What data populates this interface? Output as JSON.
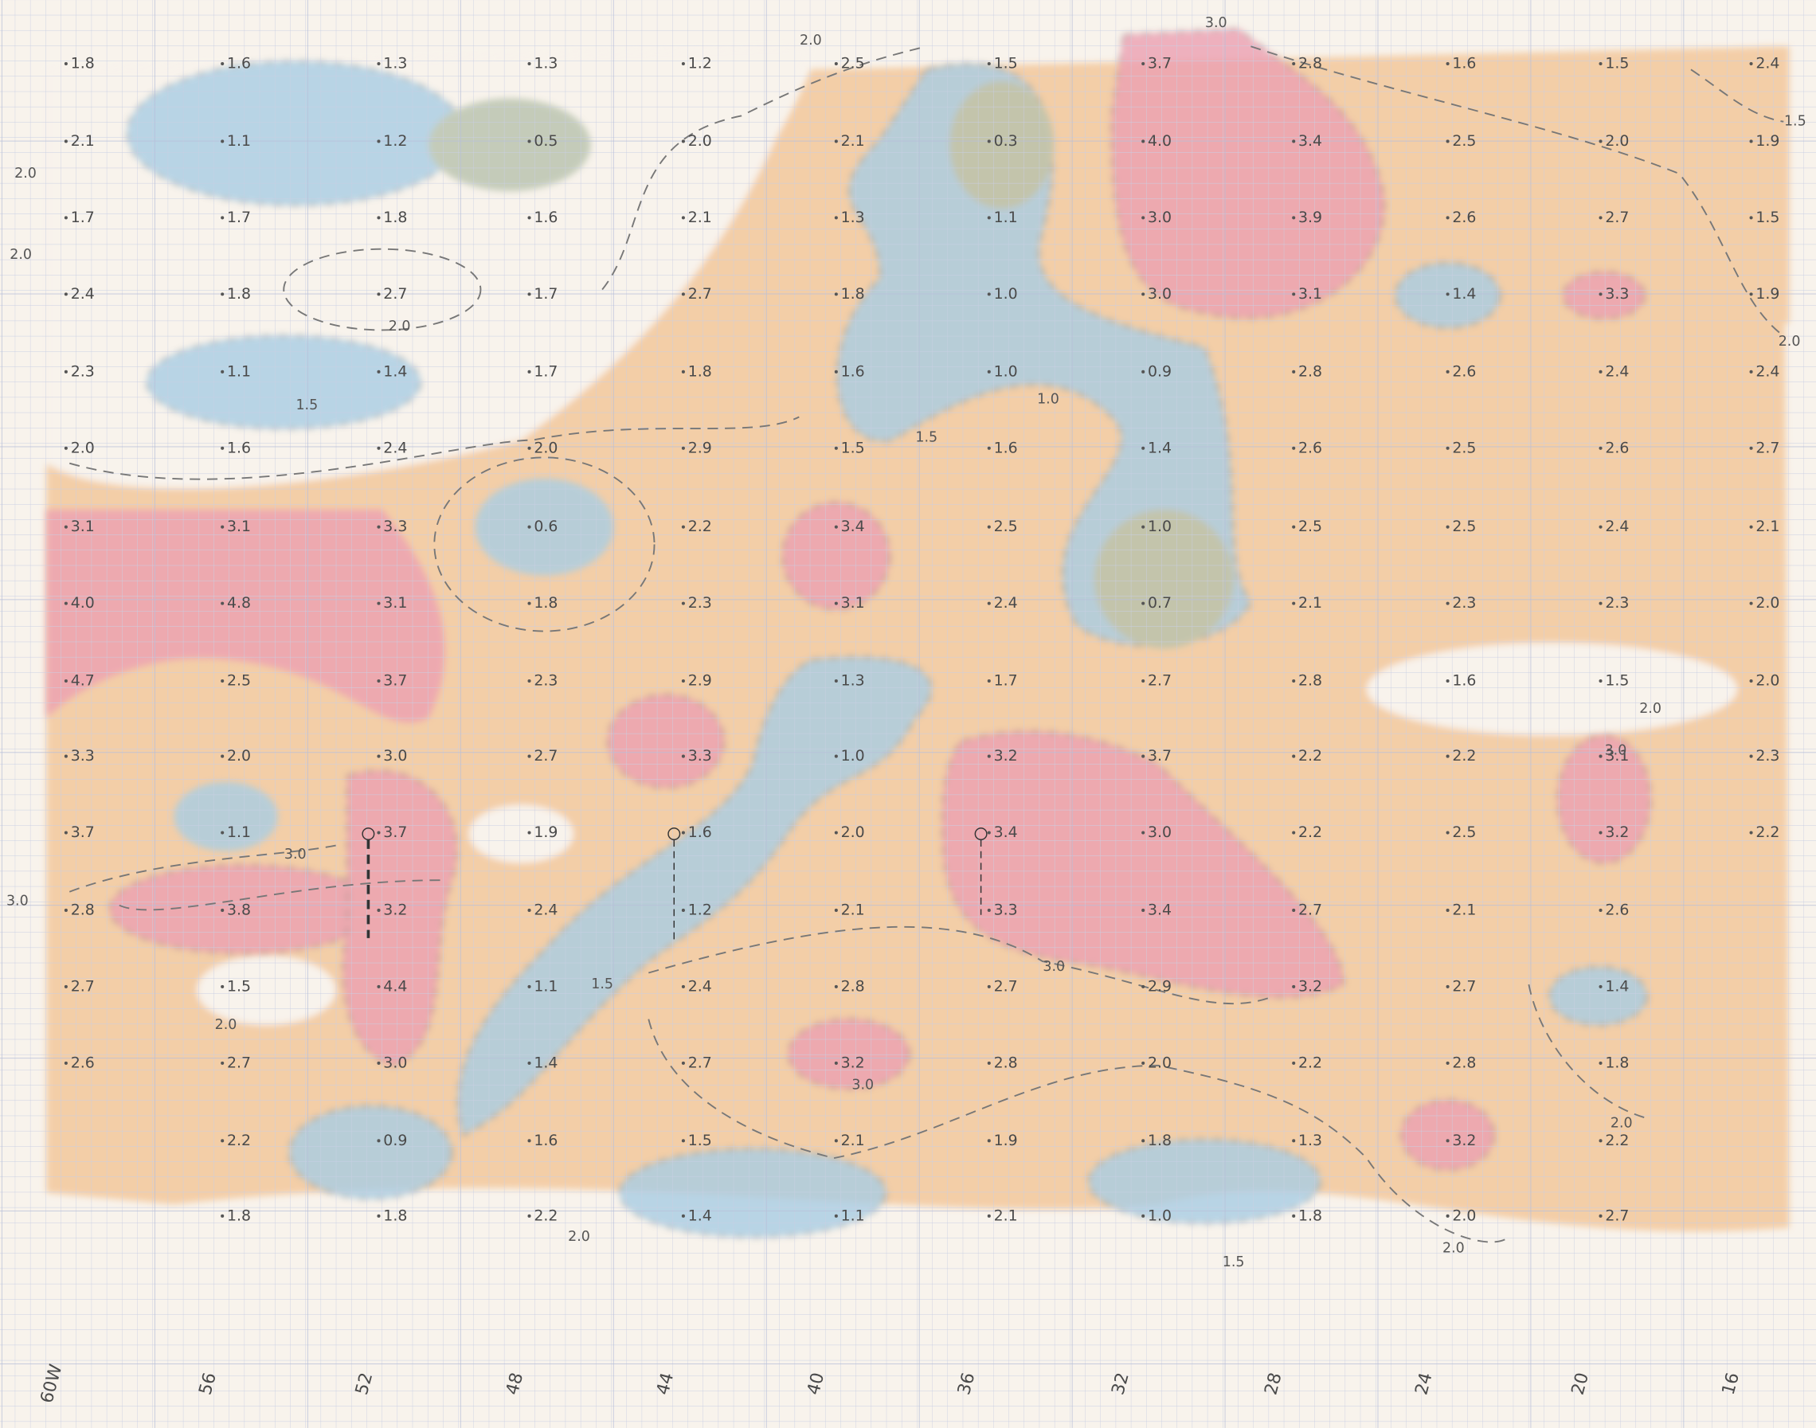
{
  "grid": {
    "rows": [
      [
        "1.8",
        "1.6",
        "1.3",
        "1.3",
        "1.2",
        "2.5",
        "1.5",
        "3.7",
        "2.8",
        "1.6",
        "1.5",
        "2.4"
      ],
      [
        "2.1",
        "1.1",
        "1.2",
        "0.5",
        "2.0",
        "2.1",
        "0.3",
        "4.0",
        "3.4",
        "2.5",
        "2.0",
        "1.9"
      ],
      [
        "1.7",
        "1.7",
        "1.8",
        "1.6",
        "2.1",
        "1.3",
        "1.1",
        "3.0",
        "3.9",
        "2.6",
        "2.7",
        "1.5"
      ],
      [
        "2.4",
        "1.8",
        "2.7",
        "1.7",
        "2.7",
        "1.8",
        "1.0",
        "3.0",
        "3.1",
        "1.4",
        "3.3",
        "1.9"
      ],
      [
        "2.3",
        "1.1",
        "1.4",
        "1.7",
        "1.8",
        "1.6",
        "1.0",
        "0.9",
        "2.8",
        "2.6",
        "2.4",
        "2.4"
      ],
      [
        "2.0",
        "1.6",
        "2.4",
        "2.0",
        "2.9",
        "1.5",
        "1.6",
        "1.4",
        "2.6",
        "2.5",
        "2.6",
        "2.7"
      ],
      [
        "3.1",
        "3.1",
        "3.3",
        "0.6",
        "2.2",
        "3.4",
        "2.5",
        "1.0",
        "2.5",
        "2.5",
        "2.4",
        "2.1"
      ],
      [
        "4.0",
        "4.8",
        "3.1",
        "1.8",
        "2.3",
        "3.1",
        "2.4",
        "0.7",
        "2.1",
        "2.3",
        "2.3",
        "2.0"
      ],
      [
        "4.7",
        "2.5",
        "3.7",
        "2.3",
        "2.9",
        "1.3",
        "1.7",
        "2.7",
        "2.8",
        "1.6",
        "1.5",
        "2.0"
      ],
      [
        "3.3",
        "2.0",
        "3.0",
        "2.7",
        "3.3",
        "1.0",
        "3.2",
        "3.7",
        "2.2",
        "2.2",
        "3.1",
        "2.3"
      ],
      [
        "3.7",
        "1.1",
        "3.7",
        "1.9",
        "1.6",
        "2.0",
        "3.4",
        "3.0",
        "2.2",
        "2.5",
        "3.2",
        "2.2"
      ],
      [
        "2.8",
        "3.8",
        "3.2",
        "2.4",
        "1.2",
        "2.1",
        "3.3",
        "3.4",
        "2.7",
        "2.1",
        "2.6",
        null
      ],
      [
        "2.7",
        "1.5",
        "4.4",
        "1.1",
        "2.4",
        "2.8",
        "2.7",
        "2.9",
        "3.2",
        "2.7",
        "1.4",
        null
      ],
      [
        "2.6",
        "2.7",
        "3.0",
        "1.4",
        "2.7",
        "3.2",
        "2.8",
        "2.0",
        "2.2",
        "2.8",
        "1.8",
        null
      ],
      [
        null,
        "2.2",
        "0.9",
        "1.6",
        "1.5",
        "2.1",
        "1.9",
        "1.8",
        "1.3",
        "3.2",
        "2.2",
        null
      ],
      [
        null,
        "1.8",
        "1.8",
        "2.2",
        "1.4",
        "1.1",
        "2.1",
        "1.0",
        "1.8",
        "2.0",
        "2.7",
        null
      ]
    ]
  },
  "longitude_labels": [
    "60W",
    "56",
    "52",
    "48",
    "44",
    "40",
    "36",
    "32",
    "28",
    "24",
    "20",
    "16"
  ],
  "contour_labels": [
    "2.0",
    "2.0",
    "2.0",
    "3.0",
    "3.0",
    "1.5",
    "1.5",
    "1.0",
    "2.0",
    "3.0",
    "1.5",
    "2.0",
    "3.0",
    "2.0",
    "2.0",
    "1.5",
    "2.0",
    "2.0",
    "3.0",
    "1.5",
    "2.0",
    "3.0"
  ]
}
